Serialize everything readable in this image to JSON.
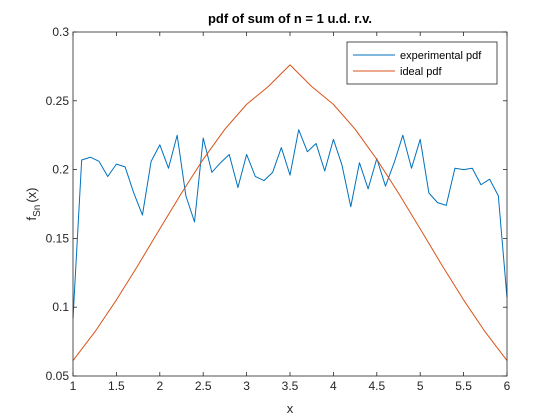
{
  "chart_data": {
    "type": "line",
    "title": "pdf of sum of n = 1 u.d. r.v.",
    "xlabel": "x",
    "ylabel_main": "f",
    "ylabel_sub": "Sn",
    "ylabel_tail": "(x)",
    "xlim": [
      1,
      6
    ],
    "ylim": [
      0.05,
      0.3
    ],
    "xticks": [
      1,
      1.5,
      2,
      2.5,
      3,
      3.5,
      4,
      4.5,
      5,
      5.5,
      6
    ],
    "xtick_labels": [
      "1",
      "1.5",
      "2",
      "2.5",
      "3",
      "3.5",
      "4",
      "4.5",
      "5",
      "5.5",
      "6"
    ],
    "yticks": [
      0.05,
      0.1,
      0.15,
      0.2,
      0.25,
      0.3
    ],
    "ytick_labels": [
      "0.05",
      "0.1",
      "0.15",
      "0.2",
      "0.25",
      "0.3"
    ],
    "grid": false,
    "legend_position": "top-right",
    "series": [
      {
        "name": "experimental pdf",
        "color": "#0072bd",
        "x": [
          1.0,
          1.1,
          1.2,
          1.3,
          1.4,
          1.5,
          1.6,
          1.7,
          1.8,
          1.9,
          2.0,
          2.1,
          2.2,
          2.3,
          2.4,
          2.5,
          2.6,
          2.7,
          2.8,
          2.9,
          3.0,
          3.1,
          3.2,
          3.3,
          3.4,
          3.5,
          3.6,
          3.7,
          3.8,
          3.9,
          4.0,
          4.1,
          4.2,
          4.3,
          4.4,
          4.5,
          4.6,
          4.7,
          4.8,
          4.9,
          5.0,
          5.1,
          5.2,
          5.3,
          5.4,
          5.5,
          5.6,
          5.7,
          5.8,
          5.9,
          6.0
        ],
        "y": [
          0.092,
          0.207,
          0.209,
          0.206,
          0.195,
          0.204,
          0.202,
          0.183,
          0.167,
          0.206,
          0.218,
          0.201,
          0.225,
          0.181,
          0.162,
          0.223,
          0.198,
          0.205,
          0.211,
          0.187,
          0.211,
          0.195,
          0.192,
          0.198,
          0.216,
          0.196,
          0.229,
          0.213,
          0.219,
          0.199,
          0.222,
          0.203,
          0.173,
          0.205,
          0.186,
          0.208,
          0.188,
          0.205,
          0.225,
          0.201,
          0.222,
          0.183,
          0.176,
          0.174,
          0.201,
          0.2,
          0.201,
          0.189,
          0.193,
          0.181,
          0.107
        ]
      },
      {
        "name": "ideal pdf",
        "color": "#d95319",
        "x": [
          1.0,
          1.25,
          1.5,
          1.75,
          2.0,
          2.25,
          2.5,
          2.75,
          3.0,
          3.25,
          3.5,
          3.75,
          4.0,
          4.25,
          4.5,
          4.75,
          5.0,
          5.25,
          5.5,
          5.75,
          6.0
        ],
        "y": [
          0.0612,
          0.0819,
          0.1053,
          0.1306,
          0.1569,
          0.1829,
          0.2075,
          0.2294,
          0.2474,
          0.2604,
          0.2761,
          0.2604,
          0.2474,
          0.2294,
          0.2075,
          0.1829,
          0.1569,
          0.1306,
          0.1053,
          0.0819,
          0.0612
        ]
      }
    ]
  }
}
